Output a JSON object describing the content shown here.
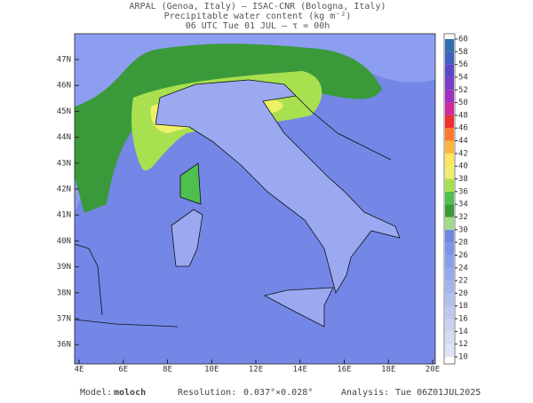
{
  "header": {
    "line1": "ARPAL (Genoa, Italy)  —  ISAC-CNR (Bologna, Italy)",
    "line2": "Precipitable water content (kg m⁻²)",
    "line3": "06 UTC Tue 01 JUL  —  τ = 00h"
  },
  "map": {
    "lat_labels": [
      "47N",
      "46N",
      "45N",
      "44N",
      "43N",
      "42N",
      "41N",
      "40N",
      "39N",
      "38N",
      "37N",
      "36N"
    ],
    "lon_labels": [
      "4E",
      "6E",
      "8E",
      "10E",
      "12E",
      "14E",
      "16E",
      "18E",
      "20E"
    ]
  },
  "colorbar": {
    "ticks": [
      10,
      12,
      14,
      16,
      18,
      20,
      22,
      24,
      26,
      28,
      30,
      32,
      34,
      36,
      38,
      40,
      42,
      44,
      46,
      48,
      50,
      52,
      54,
      56,
      58,
      60
    ],
    "colors": [
      "#dfe4f6",
      "#d4dcf4",
      "#c9d3f2",
      "#bdc9f0",
      "#b0bfee",
      "#a3b4ee",
      "#96a9ee",
      "#8a9eee",
      "#7e92e8",
      "#7386e2",
      "#9fdc8a",
      "#3a9a3a",
      "#4fbf4f",
      "#a9e04f",
      "#eef06a",
      "#ffe65a",
      "#ffb43c",
      "#ff7a2c",
      "#ee3030",
      "#d02a9a",
      "#a030c0",
      "#7a3cc8",
      "#5a48c8",
      "#4060c0",
      "#3070b0"
    ]
  },
  "footer": {
    "model_label": "Model:",
    "model": "moloch",
    "resolution_label": "Resolution:",
    "resolution": "0.037°×0.028°",
    "analysis_label": "Analysis:",
    "analysis": "Tue 06Z01JUL2025"
  }
}
